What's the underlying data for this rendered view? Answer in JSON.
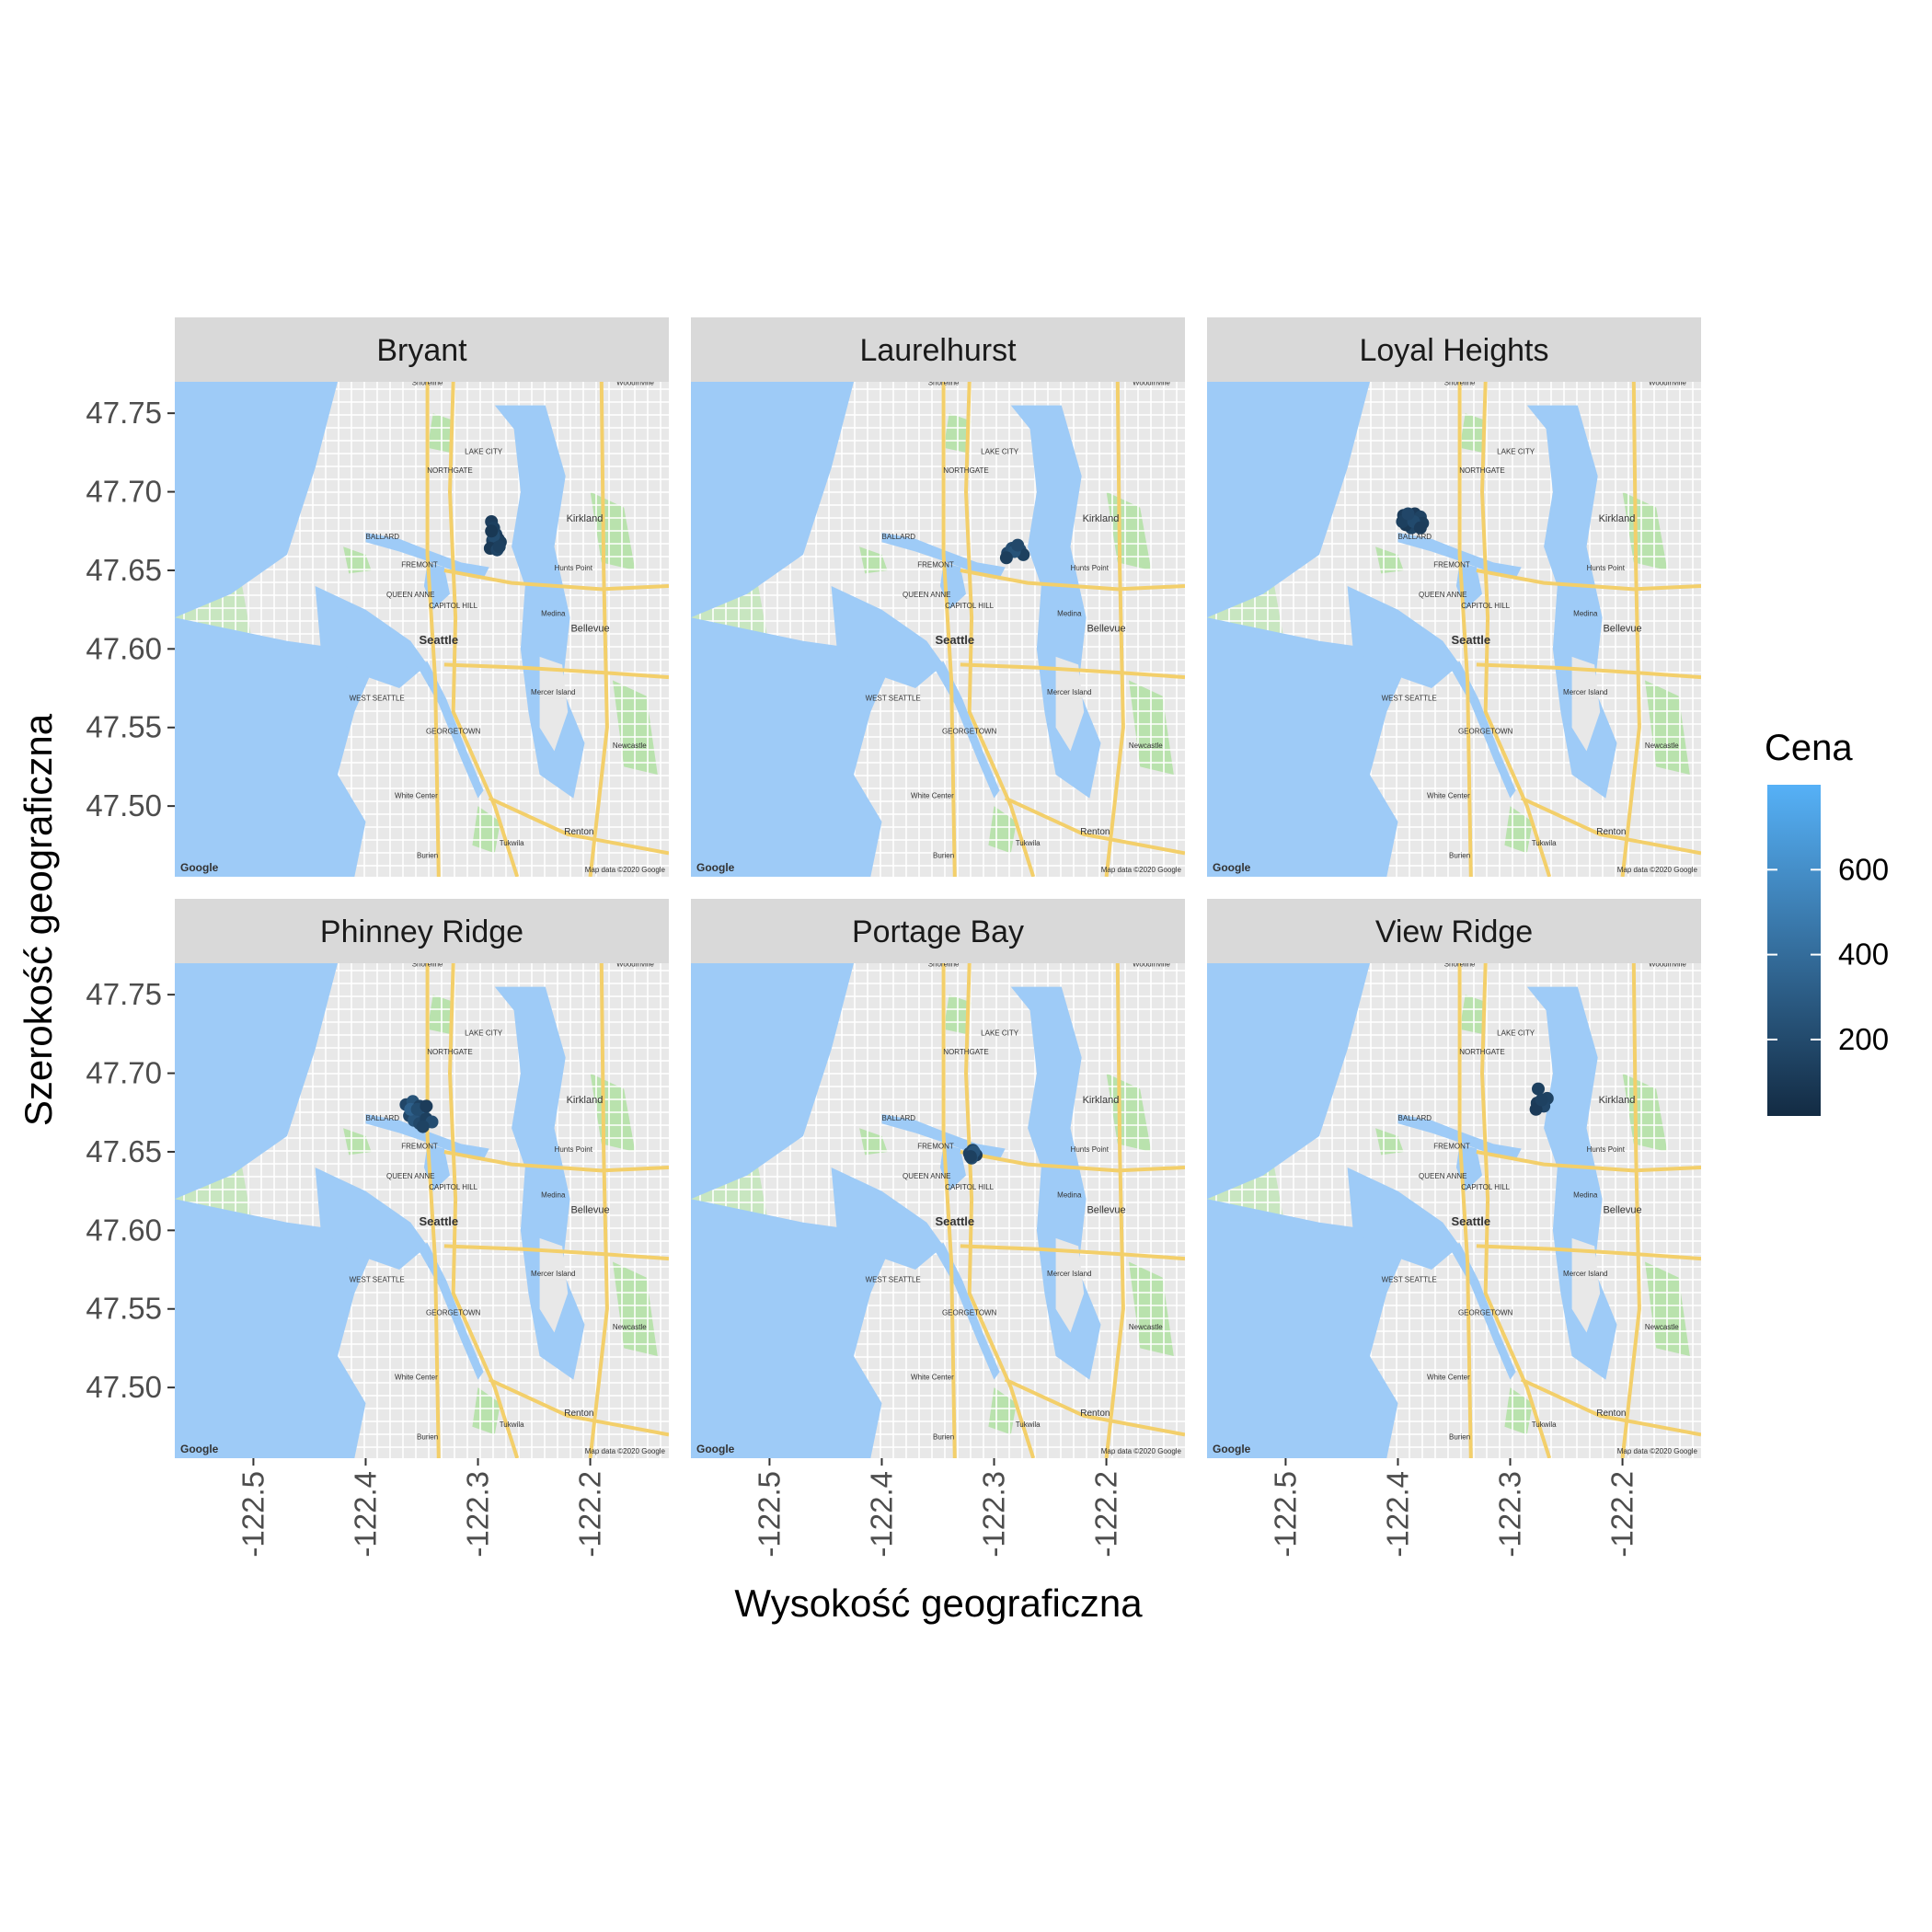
{
  "chart_data": {
    "type": "scatter",
    "xlabel": "Wysokość geograficzna",
    "ylabel": "Szerokość geograficzna",
    "xlim": [
      -122.57,
      -122.13
    ],
    "ylim": [
      47.455,
      47.77
    ],
    "x_ticks": [
      -122.5,
      -122.4,
      -122.3,
      -122.2
    ],
    "x_tick_labels": [
      "-122.5",
      "-122.4",
      "-122.3",
      "-122.2"
    ],
    "y_ticks": [
      47.5,
      47.55,
      47.6,
      47.65,
      47.7,
      47.75
    ],
    "y_tick_labels": [
      "47.50",
      "47.55",
      "47.60",
      "47.65",
      "47.70",
      "47.75"
    ],
    "color_scale": {
      "title": "Cena",
      "low_color": "#132B43",
      "high_color": "#56B1F7",
      "range": [
        20,
        800
      ],
      "breaks": [
        200,
        400,
        600
      ],
      "break_labels": [
        "200",
        "400",
        "600"
      ]
    },
    "map_labels": {
      "seattle": "Seattle",
      "kirkland": "Kirkland",
      "bellevue": "Bellevue",
      "renton": "Renton",
      "ballard": "BALLARD",
      "fremont": "FREMONT",
      "northgate": "NORTHGATE",
      "lake_city": "LAKE CITY",
      "shoreline": "Shoreline",
      "woodinville": "Woodinville",
      "queen_anne": "QUEEN ANNE",
      "capitol_hill": "CAPITOL HILL",
      "mercer_island": "Mercer Island",
      "west_seattle": "WEST SEATTLE",
      "georgetown": "GEORGETOWN",
      "white_center": "White Center",
      "burien": "Burien",
      "tukwila": "Tukwila",
      "newcastle": "Newcastle",
      "hunts_point": "Hunts Point",
      "medina": "Medina",
      "google": "Google",
      "attribution": "Map data ©2020 Google"
    },
    "facets": [
      {
        "name": "Bryant",
        "points": [
          {
            "lon": -122.288,
            "lat": 47.681,
            "price": 120
          },
          {
            "lon": -122.286,
            "lat": 47.677,
            "price": 140
          },
          {
            "lon": -122.284,
            "lat": 47.673,
            "price": 160
          },
          {
            "lon": -122.282,
            "lat": 47.67,
            "price": 110
          },
          {
            "lon": -122.287,
            "lat": 47.669,
            "price": 150
          },
          {
            "lon": -122.285,
            "lat": 47.666,
            "price": 180
          },
          {
            "lon": -122.28,
            "lat": 47.668,
            "price": 130
          },
          {
            "lon": -122.289,
            "lat": 47.664,
            "price": 100
          },
          {
            "lon": -122.283,
            "lat": 47.663,
            "price": 170
          },
          {
            "lon": -122.286,
            "lat": 47.672,
            "price": 210
          },
          {
            "lon": -122.281,
            "lat": 47.665,
            "price": 140
          },
          {
            "lon": -122.288,
            "lat": 47.675,
            "price": 95
          }
        ]
      },
      {
        "name": "Laurelhurst",
        "points": [
          {
            "lon": -122.288,
            "lat": 47.661,
            "price": 180
          },
          {
            "lon": -122.284,
            "lat": 47.664,
            "price": 220
          },
          {
            "lon": -122.28,
            "lat": 47.665,
            "price": 160
          },
          {
            "lon": -122.277,
            "lat": 47.663,
            "price": 200
          },
          {
            "lon": -122.274,
            "lat": 47.66,
            "price": 140
          },
          {
            "lon": -122.282,
            "lat": 47.662,
            "price": 250
          },
          {
            "lon": -122.289,
            "lat": 47.658,
            "price": 130
          },
          {
            "lon": -122.279,
            "lat": 47.666,
            "price": 190
          }
        ]
      },
      {
        "name": "Loyal Heights",
        "points": [
          {
            "lon": -122.395,
            "lat": 47.685,
            "price": 120
          },
          {
            "lon": -122.39,
            "lat": 47.683,
            "price": 140
          },
          {
            "lon": -122.385,
            "lat": 47.686,
            "price": 110
          },
          {
            "lon": -122.38,
            "lat": 47.684,
            "price": 160
          },
          {
            "lon": -122.378,
            "lat": 47.68,
            "price": 130
          },
          {
            "lon": -122.383,
            "lat": 47.678,
            "price": 150
          },
          {
            "lon": -122.388,
            "lat": 47.677,
            "price": 170
          },
          {
            "lon": -122.393,
            "lat": 47.679,
            "price": 100
          },
          {
            "lon": -122.396,
            "lat": 47.681,
            "price": 140
          },
          {
            "lon": -122.386,
            "lat": 47.681,
            "price": 200
          },
          {
            "lon": -122.38,
            "lat": 47.677,
            "price": 120
          },
          {
            "lon": -122.391,
            "lat": 47.686,
            "price": 180
          }
        ]
      },
      {
        "name": "Phinney Ridge",
        "points": [
          {
            "lon": -122.364,
            "lat": 47.68,
            "price": 180
          },
          {
            "lon": -122.358,
            "lat": 47.682,
            "price": 250
          },
          {
            "lon": -122.352,
            "lat": 47.679,
            "price": 150
          },
          {
            "lon": -122.349,
            "lat": 47.676,
            "price": 300
          },
          {
            "lon": -122.355,
            "lat": 47.674,
            "price": 200
          },
          {
            "lon": -122.361,
            "lat": 47.673,
            "price": 170
          },
          {
            "lon": -122.357,
            "lat": 47.67,
            "price": 260
          },
          {
            "lon": -122.352,
            "lat": 47.668,
            "price": 190
          },
          {
            "lon": -122.346,
            "lat": 47.671,
            "price": 140
          },
          {
            "lon": -122.341,
            "lat": 47.669,
            "price": 220
          },
          {
            "lon": -122.349,
            "lat": 47.666,
            "price": 160
          },
          {
            "lon": -122.36,
            "lat": 47.677,
            "price": 330
          },
          {
            "lon": -122.354,
            "lat": 47.677,
            "price": 210
          },
          {
            "lon": -122.346,
            "lat": 47.679,
            "price": 120
          }
        ]
      },
      {
        "name": "Portage Bay",
        "points": [
          {
            "lon": -122.322,
            "lat": 47.649,
            "price": 150
          },
          {
            "lon": -122.319,
            "lat": 47.651,
            "price": 180
          },
          {
            "lon": -122.316,
            "lat": 47.648,
            "price": 120
          },
          {
            "lon": -122.32,
            "lat": 47.646,
            "price": 200
          },
          {
            "lon": -122.318,
            "lat": 47.65,
            "price": 260
          },
          {
            "lon": -122.321,
            "lat": 47.647,
            "price": 140
          }
        ]
      },
      {
        "name": "View Ridge",
        "points": [
          {
            "lon": -122.275,
            "lat": 47.69,
            "price": 140
          },
          {
            "lon": -122.267,
            "lat": 47.684,
            "price": 160
          },
          {
            "lon": -122.276,
            "lat": 47.681,
            "price": 120
          },
          {
            "lon": -122.27,
            "lat": 47.679,
            "price": 180
          },
          {
            "lon": -122.277,
            "lat": 47.677,
            "price": 110
          },
          {
            "lon": -122.272,
            "lat": 47.683,
            "price": 150
          }
        ]
      }
    ]
  }
}
